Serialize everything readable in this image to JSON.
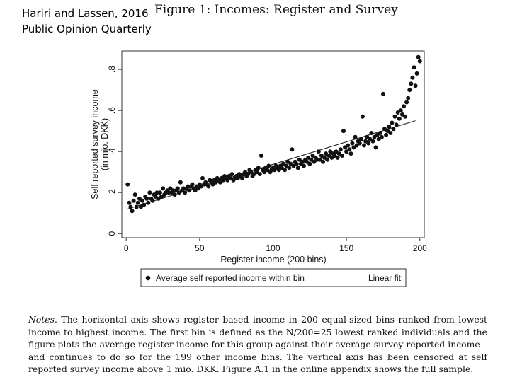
{
  "source": {
    "authors": "Hariri and Lassen, 2016",
    "journal": "Public Opinion Quarterly"
  },
  "figure": {
    "title": "Figure 1: Incomes: Register and Survey"
  },
  "notes": {
    "lead": "Notes.",
    "text": " The horizontal axis shows register based income in 200 equal-sized bins ranked from lowest income to highest income. The first bin is defined as the N/200=25 lowest ranked individuals and the figure plots the average register income for this group against their average survey reported income – and continues to do so for the 199 other income bins. The vertical axis has been censored at self reported survey income above 1 mio. DKK. Figure A.1 in the online appendix shows the full sample."
  },
  "colors": {
    "marker": "#111111",
    "fit": "#222222",
    "frame": "#333333"
  },
  "chart_data": {
    "type": "scatter",
    "xlabel": "Register income (200 bins)",
    "ylabel_line1": "Self reported survey income",
    "ylabel_line2": "(in mio. DKK)",
    "xlim": [
      -3,
      203
    ],
    "ylim": [
      -0.02,
      0.89
    ],
    "xticks": [
      0,
      50,
      100,
      150,
      200
    ],
    "xtick_labels": [
      "0",
      "50",
      "100",
      "150",
      "200"
    ],
    "yticks": [
      0,
      0.2,
      0.4,
      0.6,
      0.8
    ],
    "ytick_labels": [
      "0",
      ".2",
      ".4",
      ".6",
      ".8"
    ],
    "grid": false,
    "legend_position": "bottom",
    "series": [
      {
        "name": "Average self reported income within bin",
        "marker": "dot",
        "points": [
          [
            1,
            0.24
          ],
          [
            2,
            0.15
          ],
          [
            3,
            0.13
          ],
          [
            4,
            0.11
          ],
          [
            5,
            0.16
          ],
          [
            6,
            0.19
          ],
          [
            7,
            0.13
          ],
          [
            8,
            0.15
          ],
          [
            9,
            0.17
          ],
          [
            10,
            0.13
          ],
          [
            11,
            0.16
          ],
          [
            12,
            0.14
          ],
          [
            13,
            0.18
          ],
          [
            14,
            0.17
          ],
          [
            15,
            0.15
          ],
          [
            16,
            0.2
          ],
          [
            17,
            0.17
          ],
          [
            18,
            0.16
          ],
          [
            19,
            0.19
          ],
          [
            20,
            0.18
          ],
          [
            21,
            0.2
          ],
          [
            22,
            0.17
          ],
          [
            23,
            0.2
          ],
          [
            24,
            0.18
          ],
          [
            25,
            0.22
          ],
          [
            26,
            0.19
          ],
          [
            27,
            0.2
          ],
          [
            28,
            0.21
          ],
          [
            29,
            0.2
          ],
          [
            30,
            0.22
          ],
          [
            31,
            0.2
          ],
          [
            32,
            0.21
          ],
          [
            33,
            0.19
          ],
          [
            34,
            0.21
          ],
          [
            35,
            0.22
          ],
          [
            36,
            0.2
          ],
          [
            37,
            0.25
          ],
          [
            38,
            0.21
          ],
          [
            39,
            0.22
          ],
          [
            40,
            0.2
          ],
          [
            41,
            0.22
          ],
          [
            42,
            0.23
          ],
          [
            43,
            0.21
          ],
          [
            44,
            0.23
          ],
          [
            45,
            0.24
          ],
          [
            46,
            0.22
          ],
          [
            47,
            0.21
          ],
          [
            48,
            0.23
          ],
          [
            49,
            0.22
          ],
          [
            50,
            0.24
          ],
          [
            51,
            0.23
          ],
          [
            52,
            0.27
          ],
          [
            53,
            0.24
          ],
          [
            54,
            0.25
          ],
          [
            55,
            0.24
          ],
          [
            56,
            0.23
          ],
          [
            57,
            0.26
          ],
          [
            58,
            0.25
          ],
          [
            59,
            0.24
          ],
          [
            60,
            0.26
          ],
          [
            61,
            0.25
          ],
          [
            62,
            0.27
          ],
          [
            63,
            0.26
          ],
          [
            64,
            0.25
          ],
          [
            65,
            0.27
          ],
          [
            66,
            0.26
          ],
          [
            67,
            0.28
          ],
          [
            68,
            0.27
          ],
          [
            69,
            0.26
          ],
          [
            70,
            0.28
          ],
          [
            71,
            0.27
          ],
          [
            72,
            0.29
          ],
          [
            73,
            0.26
          ],
          [
            74,
            0.27
          ],
          [
            75,
            0.28
          ],
          [
            76,
            0.27
          ],
          [
            77,
            0.29
          ],
          [
            78,
            0.28
          ],
          [
            79,
            0.27
          ],
          [
            80,
            0.29
          ],
          [
            81,
            0.3
          ],
          [
            82,
            0.28
          ],
          [
            83,
            0.29
          ],
          [
            84,
            0.31
          ],
          [
            85,
            0.3
          ],
          [
            86,
            0.28
          ],
          [
            87,
            0.29
          ],
          [
            88,
            0.31
          ],
          [
            89,
            0.3
          ],
          [
            90,
            0.32
          ],
          [
            91,
            0.29
          ],
          [
            92,
            0.38
          ],
          [
            93,
            0.31
          ],
          [
            94,
            0.3
          ],
          [
            95,
            0.32
          ],
          [
            96,
            0.31
          ],
          [
            97,
            0.33
          ],
          [
            98,
            0.3
          ],
          [
            99,
            0.31
          ],
          [
            100,
            0.32
          ],
          [
            101,
            0.31
          ],
          [
            102,
            0.33
          ],
          [
            103,
            0.32
          ],
          [
            104,
            0.31
          ],
          [
            105,
            0.33
          ],
          [
            106,
            0.32
          ],
          [
            107,
            0.34
          ],
          [
            108,
            0.31
          ],
          [
            109,
            0.33
          ],
          [
            110,
            0.35
          ],
          [
            111,
            0.32
          ],
          [
            112,
            0.34
          ],
          [
            113,
            0.41
          ],
          [
            114,
            0.33
          ],
          [
            115,
            0.35
          ],
          [
            116,
            0.34
          ],
          [
            117,
            0.32
          ],
          [
            118,
            0.36
          ],
          [
            119,
            0.34
          ],
          [
            120,
            0.35
          ],
          [
            121,
            0.33
          ],
          [
            122,
            0.36
          ],
          [
            123,
            0.35
          ],
          [
            124,
            0.37
          ],
          [
            125,
            0.34
          ],
          [
            126,
            0.36
          ],
          [
            127,
            0.38
          ],
          [
            128,
            0.35
          ],
          [
            129,
            0.37
          ],
          [
            130,
            0.36
          ],
          [
            131,
            0.4
          ],
          [
            132,
            0.36
          ],
          [
            133,
            0.38
          ],
          [
            134,
            0.35
          ],
          [
            135,
            0.37
          ],
          [
            136,
            0.39
          ],
          [
            137,
            0.36
          ],
          [
            138,
            0.38
          ],
          [
            139,
            0.4
          ],
          [
            140,
            0.37
          ],
          [
            141,
            0.39
          ],
          [
            142,
            0.38
          ],
          [
            143,
            0.4
          ],
          [
            144,
            0.37
          ],
          [
            145,
            0.39
          ],
          [
            146,
            0.41
          ],
          [
            147,
            0.38
          ],
          [
            148,
            0.5
          ],
          [
            149,
            0.42
          ],
          [
            150,
            0.4
          ],
          [
            151,
            0.43
          ],
          [
            152,
            0.41
          ],
          [
            153,
            0.39
          ],
          [
            154,
            0.44
          ],
          [
            155,
            0.42
          ],
          [
            156,
            0.47
          ],
          [
            157,
            0.43
          ],
          [
            158,
            0.45
          ],
          [
            159,
            0.44
          ],
          [
            160,
            0.46
          ],
          [
            161,
            0.57
          ],
          [
            162,
            0.43
          ],
          [
            163,
            0.45
          ],
          [
            164,
            0.47
          ],
          [
            165,
            0.44
          ],
          [
            166,
            0.46
          ],
          [
            167,
            0.49
          ],
          [
            168,
            0.45
          ],
          [
            169,
            0.47
          ],
          [
            170,
            0.42
          ],
          [
            171,
            0.48
          ],
          [
            172,
            0.46
          ],
          [
            173,
            0.49
          ],
          [
            174,
            0.47
          ],
          [
            175,
            0.68
          ],
          [
            176,
            0.51
          ],
          [
            177,
            0.48
          ],
          [
            178,
            0.5
          ],
          [
            179,
            0.52
          ],
          [
            180,
            0.49
          ],
          [
            181,
            0.54
          ],
          [
            182,
            0.51
          ],
          [
            183,
            0.57
          ],
          [
            184,
            0.53
          ],
          [
            185,
            0.59
          ],
          [
            186,
            0.56
          ],
          [
            187,
            0.6
          ],
          [
            188,
            0.58
          ],
          [
            189,
            0.62
          ],
          [
            190,
            0.57
          ],
          [
            191,
            0.64
          ],
          [
            192,
            0.66
          ],
          [
            193,
            0.7
          ],
          [
            194,
            0.73
          ],
          [
            195,
            0.76
          ],
          [
            196,
            0.81
          ],
          [
            197,
            0.72
          ],
          [
            198,
            0.78
          ],
          [
            199,
            0.86
          ],
          [
            200,
            0.84
          ]
        ]
      },
      {
        "name": "Linear fit",
        "marker": "line",
        "line": [
          [
            1,
            0.12
          ],
          [
            197,
            0.55
          ]
        ]
      }
    ]
  }
}
